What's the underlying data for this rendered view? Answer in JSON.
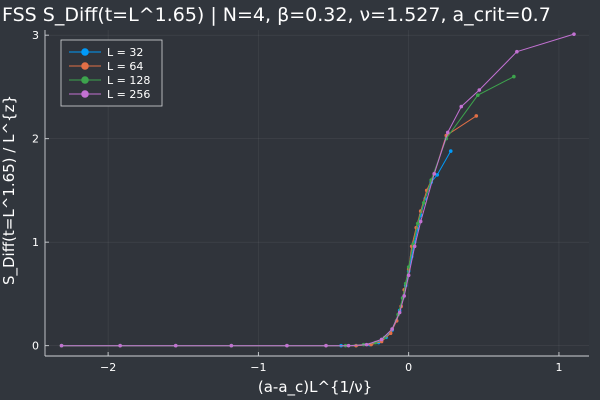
{
  "chart_data": {
    "type": "line",
    "title": "FSS S_Diff(t=L^1.65) | N=4, β=0.32, ν=1.527, a_crit=0.7",
    "xlabel": "(a-a_c)L^{1/ν}",
    "ylabel": "S_Diff(t=L^1.65) / L^{z}",
    "xlim": [
      -2.42,
      1.2
    ],
    "ylim": [
      -0.1,
      3.05
    ],
    "xticks": [
      -2,
      -1,
      0,
      1
    ],
    "yticks": [
      0,
      1,
      2,
      3
    ],
    "xtick_labels": [
      "−2",
      "−1",
      "0",
      "1"
    ],
    "ytick_labels": [
      "0",
      "1",
      "2",
      "3"
    ],
    "grid": true,
    "legend_position": "top-left",
    "background": "#30343b",
    "series": [
      {
        "name": "L = 32",
        "color": "#009af9",
        "x": [
          -2.31,
          -1.92,
          -1.55,
          -1.18,
          -0.81,
          -0.45,
          -0.35,
          -0.26,
          -0.2,
          -0.15,
          -0.11,
          -0.08,
          -0.06,
          -0.04,
          -0.02,
          0.0,
          0.02,
          0.04,
          0.06,
          0.08,
          0.11,
          0.15,
          0.19,
          0.28
        ],
        "y": [
          0.0,
          0.0,
          0.0,
          0.0,
          0.0,
          0.0,
          0.0,
          0.01,
          0.03,
          0.08,
          0.15,
          0.24,
          0.34,
          0.46,
          0.58,
          0.72,
          0.86,
          1.0,
          1.13,
          1.26,
          1.42,
          1.58,
          1.65,
          1.88
        ]
      },
      {
        "name": "L = 64",
        "color": "#e26f46",
        "x": [
          -2.31,
          -1.92,
          -1.55,
          -1.18,
          -0.81,
          -0.55,
          -0.35,
          -0.25,
          -0.18,
          -0.12,
          -0.08,
          -0.05,
          -0.03,
          0.0,
          0.02,
          0.05,
          0.08,
          0.12,
          0.17,
          0.25,
          0.45
        ],
        "y": [
          0.0,
          0.0,
          0.0,
          0.0,
          0.0,
          0.0,
          0.0,
          0.01,
          0.04,
          0.12,
          0.24,
          0.38,
          0.54,
          0.74,
          0.96,
          1.14,
          1.3,
          1.5,
          1.66,
          2.03,
          2.22
        ]
      },
      {
        "name": "L = 128",
        "color": "#3da44d",
        "x": [
          -2.31,
          -1.92,
          -1.55,
          -1.18,
          -0.81,
          -0.55,
          -0.42,
          -0.3,
          -0.22,
          -0.16,
          -0.11,
          -0.07,
          -0.04,
          -0.02,
          0.0,
          0.03,
          0.06,
          0.1,
          0.15,
          0.25,
          0.46,
          0.7
        ],
        "y": [
          0.0,
          0.0,
          0.0,
          0.0,
          0.0,
          0.0,
          0.0,
          0.01,
          0.03,
          0.08,
          0.16,
          0.3,
          0.46,
          0.6,
          0.76,
          0.98,
          1.18,
          1.38,
          1.6,
          2.0,
          2.42,
          2.6
        ]
      },
      {
        "name": "L = 256",
        "color": "#c271d2",
        "x": [
          -2.31,
          -1.92,
          -1.55,
          -1.18,
          -0.81,
          -0.55,
          -0.4,
          -0.28,
          -0.18,
          -0.11,
          -0.06,
          -0.03,
          0.0,
          0.04,
          0.08,
          0.17,
          0.26,
          0.35,
          0.47,
          0.72,
          1.1
        ],
        "y": [
          0.0,
          0.0,
          0.0,
          0.0,
          0.0,
          0.0,
          0.0,
          0.01,
          0.06,
          0.16,
          0.32,
          0.48,
          0.68,
          0.96,
          1.2,
          1.66,
          2.06,
          2.31,
          2.47,
          2.84,
          3.01
        ]
      }
    ]
  }
}
